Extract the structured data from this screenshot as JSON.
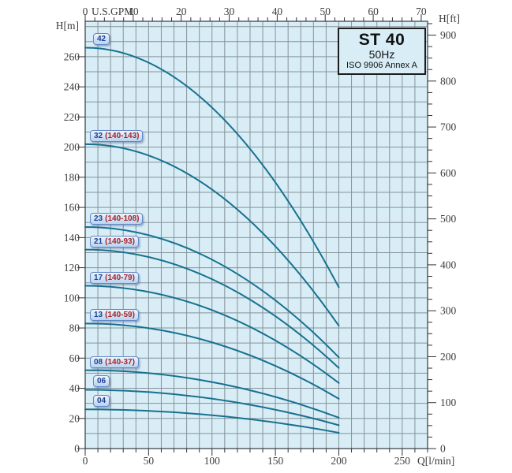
{
  "title_box": {
    "model": "ST 40",
    "frequency": "50Hz",
    "standard": "ISO 9906 Annex A"
  },
  "axes": {
    "left": {
      "label": "H[m]",
      "ticks": [
        0,
        20,
        40,
        60,
        80,
        100,
        120,
        140,
        160,
        180,
        200,
        220,
        240,
        260
      ]
    },
    "right": {
      "label": "H[ft]",
      "ticks": [
        0,
        100,
        200,
        300,
        400,
        500,
        600,
        700,
        800,
        900
      ]
    },
    "bottom": {
      "label": "Q[l/min]",
      "ticks": [
        0,
        50,
        100,
        150,
        200,
        250
      ]
    },
    "top": {
      "label": "U.S.GPM",
      "ticks": [
        0,
        10,
        20,
        30,
        40,
        50,
        60,
        70
      ]
    }
  },
  "colors": {
    "plot_bg": "#d8edf6",
    "curve": "#17718f",
    "grid": "#86929a",
    "border": "#4a555d",
    "tick": "#333333",
    "label_stage": "#1c3f94",
    "label_range": "#a5242a"
  },
  "chart_data": {
    "type": "line",
    "title": "ST 40",
    "subtitle": "50Hz",
    "annotation": "ISO 9906 Annex A",
    "xlabel": "Q[l/min]",
    "x2label": "U.S.GPM",
    "ylabel": "H[m]",
    "y2label": "H[ft]",
    "xlim": [
      0,
      270
    ],
    "ylim": [
      0,
      283.5
    ],
    "x2lim_gpm": [
      0,
      71.3
    ],
    "y2lim_ft": [
      0,
      930
    ],
    "grid": "on",
    "grid_step": {
      "x_lmin": 10,
      "y_m": 10
    },
    "legend_position": "none",
    "x": [
      0,
      50,
      100,
      150,
      200
    ],
    "series": [
      {
        "name": "42",
        "label_stage": "42",
        "label_range": "",
        "y": [
          266,
          256,
          226,
          177,
          107
        ]
      },
      {
        "name": "32",
        "label_stage": "32",
        "label_range": "(140-143)",
        "y": [
          202,
          194,
          172,
          134,
          81.5
        ]
      },
      {
        "name": "23",
        "label_stage": "23",
        "label_range": "(140-108)",
        "y": [
          147,
          141.5,
          125.5,
          98.5,
          60.5
        ]
      },
      {
        "name": "21",
        "label_stage": "21",
        "label_range": "(140-93)",
        "y": [
          132,
          127,
          112.5,
          88,
          53.5
        ]
      },
      {
        "name": "17",
        "label_stage": "17",
        "label_range": "(140-79)",
        "y": [
          108,
          104,
          92,
          71.5,
          43.5
        ]
      },
      {
        "name": "13",
        "label_stage": "13",
        "label_range": "(140-59)",
        "y": [
          83,
          80,
          70.5,
          55,
          33
        ]
      },
      {
        "name": "08",
        "label_stage": "08",
        "label_range": "(140-37)",
        "y": [
          52,
          50,
          44,
          34.5,
          20.5
        ]
      },
      {
        "name": "06",
        "label_stage": "06",
        "label_range": "",
        "y": [
          39,
          37.5,
          33,
          26,
          15.5
        ]
      },
      {
        "name": "04",
        "label_stage": "04",
        "label_range": "",
        "y": [
          26,
          25,
          22,
          17.5,
          10.5
        ]
      }
    ]
  }
}
